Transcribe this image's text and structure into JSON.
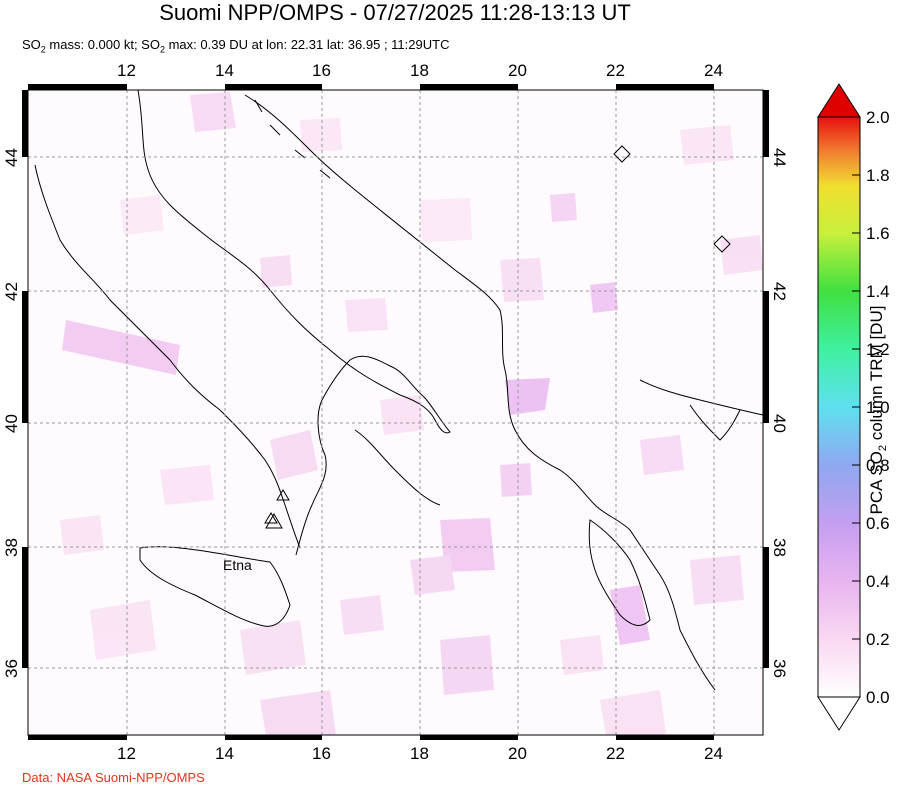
{
  "title": "Suomi NPP/OMPS - 07/27/2025 11:28-13:13 UT",
  "subtitle": {
    "mass_prefix": "SO",
    "mass_sub": "2",
    "mass_text": " mass: 0.000 kt; SO",
    "max_sub": "2",
    "max_text": " max: 0.39 DU at lon: 22.31 lat: 36.95 ; 11:29UTC"
  },
  "credit": "Data: NASA Suomi-NPP/OMPS",
  "map": {
    "lon_ticks": [
      "12",
      "14",
      "16",
      "18",
      "20",
      "22",
      "24"
    ],
    "lat_ticks": [
      "36",
      "38",
      "40",
      "42",
      "44"
    ],
    "volcano_label": "Etna",
    "grid": true
  },
  "colorbar": {
    "title_pre": "PCA SO",
    "title_sub": "2",
    "title_post": " column TRM [DU]",
    "ticks": [
      "0.0",
      "0.2",
      "0.4",
      "0.6",
      "0.8",
      "1.0",
      "1.2",
      "1.4",
      "1.6",
      "1.8",
      "2.0"
    ],
    "colors": [
      "#ffffff",
      "#f5c6f0",
      "#d9a0f0",
      "#9b9bf0",
      "#5fd0f0",
      "#3ff0b0",
      "#3fe03f",
      "#c0f03f",
      "#f0f03f",
      "#f0a03f",
      "#f0401f",
      "#e00000"
    ]
  }
}
